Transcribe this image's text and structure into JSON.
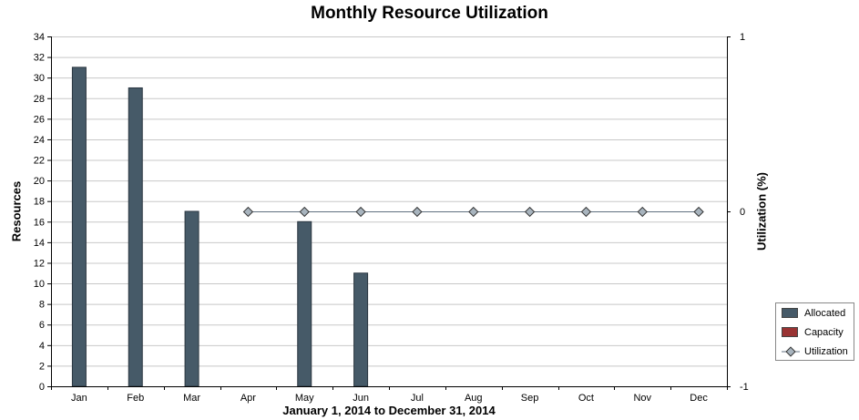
{
  "chart_data": {
    "type": "bar",
    "title": "Monthly Resource Utilization",
    "xlabel": "January 1, 2014 to December 31, 2014",
    "ylabel": "Resources",
    "y2label": "Utilization (%)",
    "categories": [
      "Jan",
      "Feb",
      "Mar",
      "Apr",
      "May",
      "Jun",
      "Jul",
      "Aug",
      "Sep",
      "Oct",
      "Nov",
      "Dec"
    ],
    "ylim": [
      0,
      34
    ],
    "yticks": [
      "0",
      "2",
      "4",
      "6",
      "8",
      "10",
      "12",
      "14",
      "16",
      "18",
      "20",
      "22",
      "24",
      "26",
      "28",
      "30",
      "32",
      "34"
    ],
    "y2lim": [
      -1,
      1
    ],
    "y2ticks": [
      "-1",
      "0",
      "1"
    ],
    "grid": true,
    "legend_position": "right",
    "series": [
      {
        "name": "Allocated",
        "type": "bar",
        "color": "#465a68",
        "values": [
          31,
          29,
          17,
          0,
          16,
          11,
          0,
          0,
          0,
          0,
          0,
          0
        ]
      },
      {
        "name": "Capacity",
        "type": "bar",
        "color": "#993333",
        "values": [
          0,
          0,
          0,
          0,
          0,
          0,
          0,
          0,
          0,
          0,
          0,
          0
        ]
      },
      {
        "name": "Utilization",
        "type": "line",
        "axis": "right",
        "color": "#8fa0ad",
        "values": [
          null,
          null,
          null,
          0,
          0,
          0,
          0,
          0,
          0,
          0,
          0,
          0
        ]
      }
    ]
  }
}
